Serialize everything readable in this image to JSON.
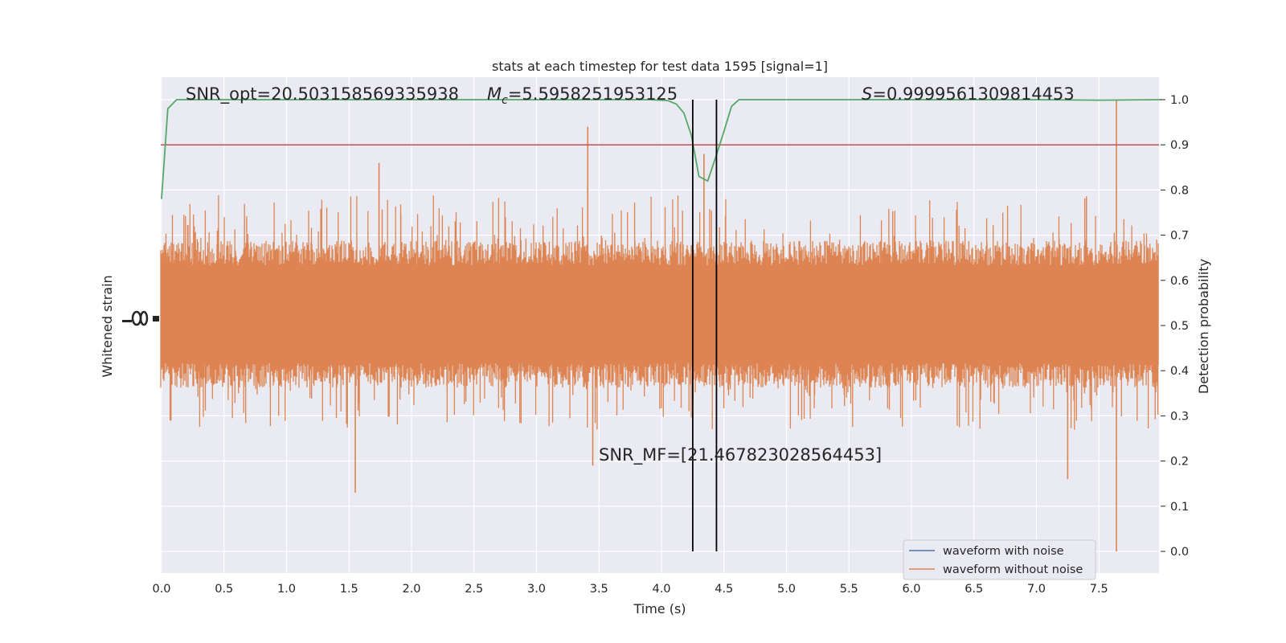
{
  "chart_data": {
    "type": "line",
    "title": "stats at each timestep for test data 1595 [signal=1]",
    "xlabel": "Time (s)",
    "ylabel_left": "Whitened strain",
    "ylabel_right": "Detection probability",
    "xlim": [
      0.0,
      8.0
    ],
    "ylim_right": [
      -0.05,
      1.05
    ],
    "xticks": [
      "0.0",
      "0.5",
      "1.0",
      "1.5",
      "2.0",
      "2.5",
      "3.0",
      "3.5",
      "4.0",
      "4.5",
      "5.0",
      "5.5",
      "6.0",
      "6.5",
      "7.0",
      "7.5"
    ],
    "xtick_values": [
      0.0,
      0.5,
      1.0,
      1.5,
      2.0,
      2.5,
      3.0,
      3.5,
      4.0,
      4.5,
      5.0,
      5.5,
      6.0,
      6.5,
      7.0,
      7.5
    ],
    "yticks_right": [
      "0.0",
      "0.1",
      "0.2",
      "0.3",
      "0.4",
      "0.5",
      "0.6",
      "0.7",
      "0.8",
      "0.9",
      "1.0"
    ],
    "ytick_values_right": [
      0.0,
      0.1,
      0.2,
      0.3,
      0.4,
      0.5,
      0.6,
      0.7,
      0.8,
      0.9,
      1.0
    ],
    "grid": true,
    "legend_position": "lower-right",
    "annotations": {
      "snr_opt": "SNR_opt=20.503158569335938",
      "mc_symbol": "M",
      "mc_sub": "c",
      "mc_value": "=5.5958251953125",
      "s_symbol": "S",
      "s_value": "=0.9999561309814453",
      "snr_mf": "SNR_MF=[21.467823028564453]"
    },
    "series": [
      {
        "name": "waveform with noise",
        "color": "#4c72b0"
      },
      {
        "name": "waveform without noise",
        "color": "#dd8452"
      }
    ],
    "detection_probability": {
      "color": "#55a868",
      "x": [
        0.0,
        0.05,
        0.12,
        0.5,
        1.0,
        1.5,
        2.0,
        2.5,
        3.0,
        3.5,
        3.9,
        4.05,
        4.12,
        4.18,
        4.24,
        4.3,
        4.37,
        4.43,
        4.5,
        4.56,
        4.62,
        5.0,
        6.0,
        7.0,
        7.5,
        8.0
      ],
      "y": [
        0.78,
        0.98,
        1.0,
        1.0,
        1.0,
        1.0,
        1.0,
        1.0,
        1.0,
        1.0,
        1.0,
        0.998,
        0.99,
        0.97,
        0.92,
        0.83,
        0.82,
        0.87,
        0.93,
        0.985,
        1.0,
        1.0,
        1.0,
        1.0,
        0.999,
        1.0
      ]
    },
    "threshold": {
      "value": 0.9,
      "color": "#c44e52"
    },
    "vertical_markers": {
      "x": [
        4.25,
        4.44
      ],
      "color": "#000000"
    },
    "noise_band_probability": [
      0.37,
      0.68
    ],
    "noise_extremes": [
      {
        "x": 3.41,
        "y": 0.94
      },
      {
        "x": 7.64,
        "y": 1.0
      },
      {
        "x": 7.64,
        "y": 0.0
      },
      {
        "x": 1.55,
        "y": 0.13
      },
      {
        "x": 1.74,
        "y": 0.86
      },
      {
        "x": 3.45,
        "y": 0.19
      },
      {
        "x": 7.25,
        "y": 0.16
      },
      {
        "x": 4.34,
        "y": 0.88
      }
    ]
  }
}
